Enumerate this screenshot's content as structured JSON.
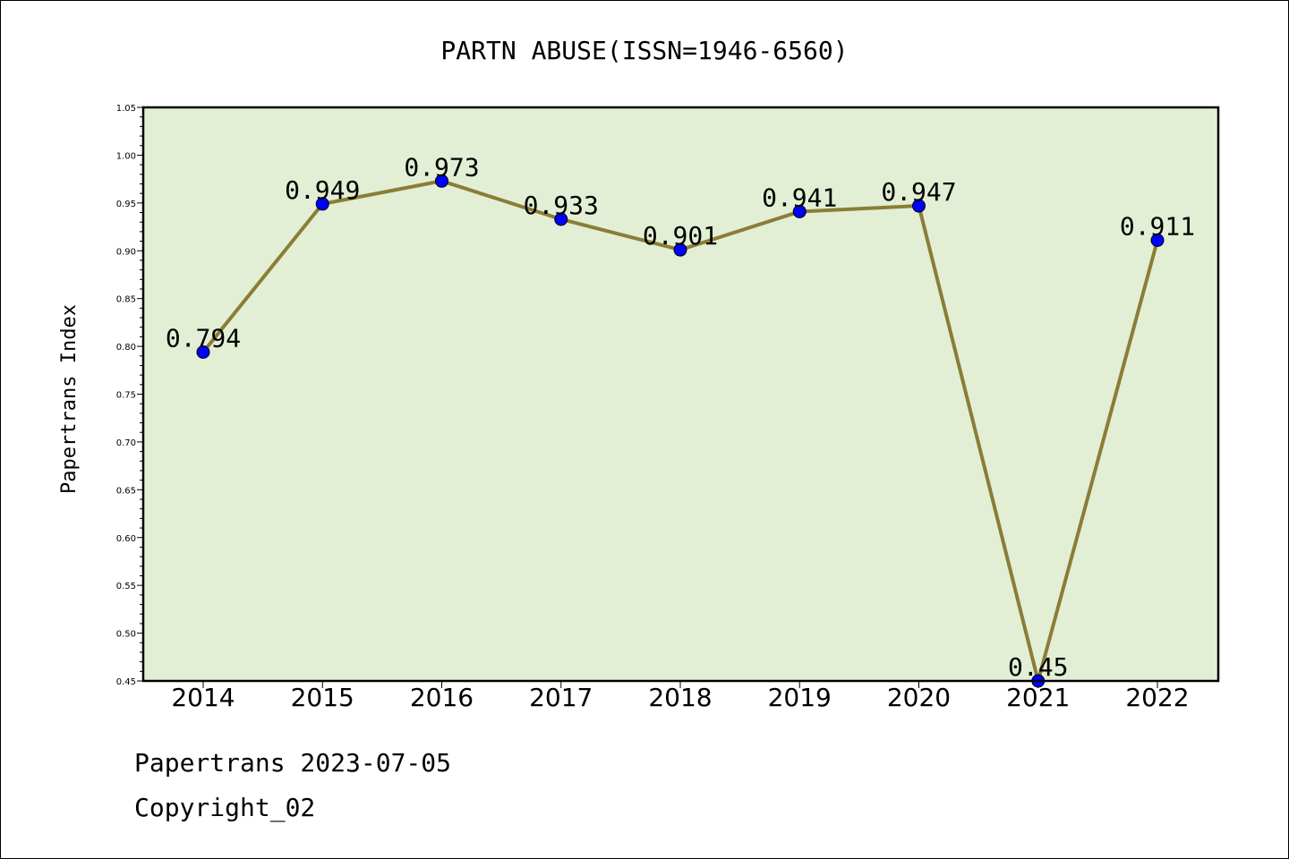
{
  "chart_data": {
    "type": "line",
    "title": "PARTN ABUSE(ISSN=1946-6560)",
    "xlabel": "",
    "ylabel": "Papertrans Index",
    "categories": [
      "2014",
      "2015",
      "2016",
      "2017",
      "2018",
      "2019",
      "2020",
      "2021",
      "2022"
    ],
    "series": [
      {
        "values": [
          0.794,
          0.949,
          0.973,
          0.933,
          0.901,
          0.941,
          0.947,
          0.45,
          0.911
        ]
      }
    ],
    "data_labels": [
      "0.794",
      "0.949",
      "0.973",
      "0.933",
      "0.901",
      "0.941",
      "0.947",
      "0.45",
      "0.911"
    ],
    "ylim": [
      0.45,
      1.05
    ],
    "yticks": [
      "0.45",
      "0.50",
      "0.55",
      "0.60",
      "0.65",
      "0.70",
      "0.75",
      "0.80",
      "0.85",
      "0.90",
      "0.95",
      "1.00",
      "1.05"
    ],
    "grid": false,
    "legend": "none",
    "colors": {
      "plot_background": "#e2efd5",
      "line": "#8b7d36",
      "marker": "#0000ff"
    }
  },
  "footer": {
    "line1": "Papertrans 2023-07-05",
    "line2": "Copyright_02"
  }
}
